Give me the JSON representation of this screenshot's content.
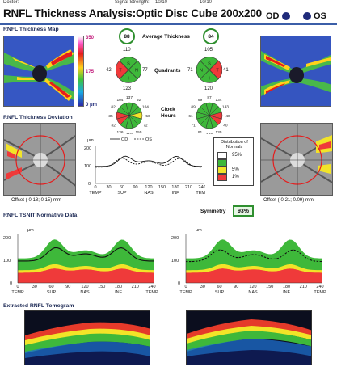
{
  "header": {
    "doctor_label": "Doctor:",
    "signal_label": "Signal Strength:",
    "signal_od": "10/10",
    "signal_os": "10/10",
    "title": "RNFL Thickness Analysis:Optic Disc Cube 200x200",
    "od_label": "OD",
    "os_label": "OS"
  },
  "sections": {
    "map": "RNFL Thickness Map",
    "deviation": "RNFL Thickness Deviation",
    "tsnit": "RNFL TSNIT Normative Data",
    "tomogram": "Extracted RNFL Tomogram"
  },
  "colorbar": {
    "max": "350",
    "mid": "175",
    "min": "0 μm"
  },
  "center": {
    "avg_label": "Average Thickness",
    "avg_od": "88",
    "avg_os": "84",
    "quad_label": "Quadrants",
    "quad_od": {
      "top": "110",
      "left": "42",
      "right": "77",
      "bottom": "123",
      "T": "T",
      "S": "S",
      "N": "N",
      "I": "I"
    },
    "quad_os": {
      "top": "105",
      "left": "71",
      "right": "41",
      "bottom": "120",
      "N": "N",
      "S": "S",
      "T": "T",
      "I": "I"
    },
    "clock_label": "Clock",
    "clock_label2": "Hours",
    "clock_od": [
      "137",
      "92",
      "104",
      "56",
      "72",
      "155",
      "118",
      "136",
      "32",
      "35",
      "82",
      "104"
    ],
    "clock_os": [
      "87",
      "134",
      "143",
      "40",
      "40",
      "135",
      "120",
      "91",
      "71",
      "61",
      "89",
      "99"
    ]
  },
  "offset_od": "Offset (-0.18; 0.15) mm",
  "offset_os": "Offset (-0.21; 0.09) mm",
  "legend_dist": {
    "title": "Distribution of Normals",
    "p95": "95%",
    "p5": "5%",
    "p1": "1%"
  },
  "symmetry": {
    "label": "Symmetry",
    "value": "93%"
  },
  "mini_chart": {
    "ylabel": "μm",
    "od_label": "OD",
    "os_label": "OS",
    "y_ticks": [
      "200",
      "100",
      "0"
    ],
    "x_ticks": [
      "0",
      "30",
      "60",
      "90",
      "120",
      "150",
      "180",
      "210",
      "240"
    ],
    "x_labels": [
      "TEMP",
      "SUP",
      "NAS",
      "INF",
      "TEMP"
    ]
  },
  "tsnit_chart": {
    "ylabel": "μm",
    "y_ticks": [
      "200",
      "100",
      "0"
    ],
    "x_ticks": [
      "0",
      "30",
      "60",
      "90",
      "120",
      "150",
      "180",
      "210",
      "240"
    ],
    "x_labels": [
      "TEMP",
      "SUP",
      "NAS",
      "INF",
      "TEMP"
    ]
  },
  "colors": {
    "green": "#3eb83a",
    "yellow": "#f2e428",
    "red": "#ef3a3a",
    "white": "#ffffff",
    "accent": "#1f2a7a"
  }
}
